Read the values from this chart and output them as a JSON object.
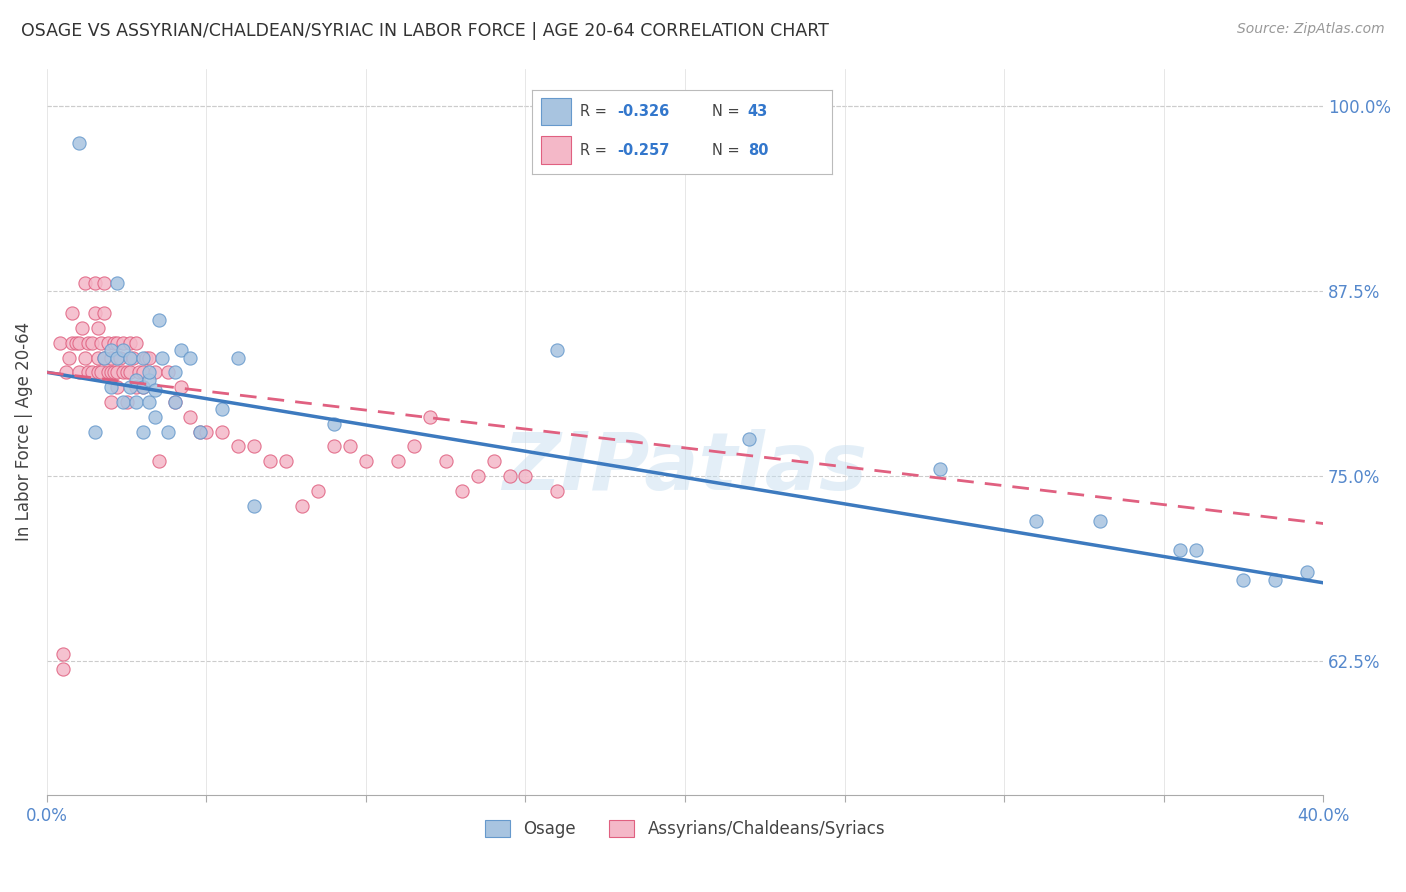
{
  "title": "OSAGE VS ASSYRIAN/CHALDEAN/SYRIAC IN LABOR FORCE | AGE 20-64 CORRELATION CHART",
  "source": "Source: ZipAtlas.com",
  "ylabel": "In Labor Force | Age 20-64",
  "xlim": [
    0.0,
    0.4
  ],
  "ylim": [
    0.535,
    1.025
  ],
  "yticks_right": [
    0.625,
    0.75,
    0.875,
    1.0
  ],
  "ytick_right_labels": [
    "62.5%",
    "75.0%",
    "87.5%",
    "100.0%"
  ],
  "watermark": "ZIPatlas",
  "blue_color": "#a8c4e0",
  "blue_edge": "#6699cc",
  "pink_color": "#f4b8c8",
  "pink_edge": "#e06080",
  "trend_blue": "#3d7abf",
  "trend_pink": "#e06080",
  "blue_scatter_x": [
    0.01,
    0.015,
    0.018,
    0.02,
    0.02,
    0.022,
    0.022,
    0.024,
    0.024,
    0.026,
    0.026,
    0.028,
    0.028,
    0.03,
    0.03,
    0.03,
    0.032,
    0.032,
    0.032,
    0.034,
    0.034,
    0.035,
    0.036,
    0.038,
    0.04,
    0.04,
    0.042,
    0.045,
    0.048,
    0.055,
    0.06,
    0.065,
    0.09,
    0.16,
    0.22,
    0.28,
    0.31,
    0.33,
    0.355,
    0.36,
    0.375,
    0.385,
    0.395
  ],
  "blue_scatter_y": [
    0.975,
    0.78,
    0.83,
    0.835,
    0.81,
    0.88,
    0.83,
    0.8,
    0.835,
    0.81,
    0.83,
    0.8,
    0.815,
    0.78,
    0.81,
    0.83,
    0.8,
    0.815,
    0.82,
    0.808,
    0.79,
    0.855,
    0.83,
    0.78,
    0.8,
    0.82,
    0.835,
    0.83,
    0.78,
    0.795,
    0.83,
    0.73,
    0.785,
    0.835,
    0.775,
    0.755,
    0.72,
    0.72,
    0.7,
    0.7,
    0.68,
    0.68,
    0.685
  ],
  "pink_scatter_x": [
    0.004,
    0.005,
    0.006,
    0.007,
    0.008,
    0.008,
    0.009,
    0.01,
    0.01,
    0.011,
    0.012,
    0.012,
    0.013,
    0.013,
    0.014,
    0.014,
    0.015,
    0.015,
    0.016,
    0.016,
    0.016,
    0.017,
    0.017,
    0.018,
    0.018,
    0.018,
    0.019,
    0.019,
    0.02,
    0.02,
    0.02,
    0.021,
    0.021,
    0.022,
    0.022,
    0.022,
    0.023,
    0.024,
    0.024,
    0.025,
    0.025,
    0.026,
    0.026,
    0.027,
    0.028,
    0.028,
    0.029,
    0.03,
    0.03,
    0.031,
    0.032,
    0.034,
    0.035,
    0.038,
    0.04,
    0.042,
    0.045,
    0.048,
    0.05,
    0.055,
    0.06,
    0.065,
    0.07,
    0.075,
    0.08,
    0.085,
    0.09,
    0.095,
    0.1,
    0.11,
    0.115,
    0.12,
    0.125,
    0.13,
    0.135,
    0.14,
    0.145,
    0.15,
    0.16,
    0.005
  ],
  "pink_scatter_y": [
    0.84,
    0.63,
    0.82,
    0.83,
    0.86,
    0.84,
    0.84,
    0.84,
    0.82,
    0.85,
    0.88,
    0.83,
    0.84,
    0.82,
    0.84,
    0.82,
    0.88,
    0.86,
    0.85,
    0.83,
    0.82,
    0.82,
    0.84,
    0.88,
    0.86,
    0.83,
    0.84,
    0.82,
    0.83,
    0.8,
    0.82,
    0.84,
    0.82,
    0.84,
    0.82,
    0.81,
    0.83,
    0.84,
    0.82,
    0.82,
    0.8,
    0.84,
    0.82,
    0.83,
    0.84,
    0.81,
    0.82,
    0.82,
    0.81,
    0.83,
    0.83,
    0.82,
    0.76,
    0.82,
    0.8,
    0.81,
    0.79,
    0.78,
    0.78,
    0.78,
    0.77,
    0.77,
    0.76,
    0.76,
    0.73,
    0.74,
    0.77,
    0.77,
    0.76,
    0.76,
    0.77,
    0.79,
    0.76,
    0.74,
    0.75,
    0.76,
    0.75,
    0.75,
    0.74,
    0.62
  ],
  "blue_trend_x0": 0.0,
  "blue_trend_y0": 0.82,
  "blue_trend_x1": 0.4,
  "blue_trend_y1": 0.678,
  "pink_trend_x0": 0.0,
  "pink_trend_y0": 0.82,
  "pink_trend_x1": 0.4,
  "pink_trend_y1": 0.718
}
